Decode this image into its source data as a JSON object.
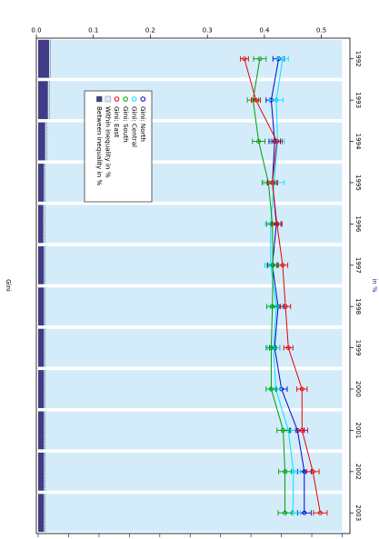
{
  "chart_data": {
    "type": "bar",
    "orientation": "rotated-90-clockwise",
    "categories": [
      "1992",
      "1993",
      "1994",
      "1995",
      "1996",
      "1997",
      "1998",
      "1999",
      "2000",
      "2001",
      "2002",
      "2003"
    ],
    "gini_axis": {
      "label": "Gini",
      "range": [
        0.0,
        0.55
      ],
      "ticks": [
        "0.0",
        "0.1",
        "0.2",
        "0.3",
        "0.4",
        "0.5"
      ]
    },
    "percent_axis": {
      "label": "in %",
      "range": [
        0,
        100
      ],
      "ticks": [
        "0",
        "10",
        "20",
        "30",
        "40",
        "50",
        "60",
        "70",
        "80",
        "90",
        "100"
      ]
    },
    "bars": [
      {
        "name": "Within inequality in %",
        "values": [
          96.4,
          96.8,
          97.7,
          98.1,
          98.3,
          98.1,
          98.1,
          98.1,
          98.1,
          98.1,
          98.1,
          98.1
        ],
        "color": "#d4ecfa"
      },
      {
        "name": "Between inequality in %",
        "values": [
          3.6,
          3.2,
          2.3,
          1.9,
          1.7,
          1.9,
          1.9,
          1.9,
          1.9,
          1.9,
          1.9,
          1.9
        ],
        "color": "#423b87"
      }
    ],
    "series": [
      {
        "name": "Gini: North",
        "color": "#0000cc",
        "values": [
          0.425,
          0.412,
          0.418,
          0.414,
          0.421,
          0.414,
          0.424,
          0.418,
          0.43,
          0.458,
          0.47,
          0.47
        ],
        "errors": [
          0.01,
          0.009,
          0.01,
          0.009,
          0.008,
          0.008,
          0.01,
          0.009,
          0.01,
          0.012,
          0.012,
          0.012
        ]
      },
      {
        "name": "Gini: Central",
        "color": "#00e0ff",
        "values": [
          0.432,
          0.421,
          0.423,
          0.417,
          0.411,
          0.411,
          0.421,
          0.416,
          0.42,
          0.442,
          0.451,
          0.45
        ],
        "errors": [
          0.01,
          0.012,
          0.012,
          0.018,
          0.009,
          0.01,
          0.011,
          0.011,
          0.01,
          0.012,
          0.012,
          0.013
        ]
      },
      {
        "name": "Gini: South",
        "color": "#009f00",
        "values": [
          0.392,
          0.38,
          0.39,
          0.407,
          0.414,
          0.415,
          0.414,
          0.412,
          0.412,
          0.433,
          0.436,
          0.436
        ],
        "errors": [
          0.011,
          0.01,
          0.011,
          0.011,
          0.01,
          0.01,
          0.01,
          0.009,
          0.009,
          0.011,
          0.011,
          0.012
        ]
      },
      {
        "name": "Gini: East",
        "color": "#e80000",
        "values": [
          0.365,
          0.385,
          0.422,
          0.414,
          0.422,
          0.432,
          0.437,
          0.442,
          0.466,
          0.466,
          0.485,
          0.498
        ],
        "errors": [
          0.007,
          0.008,
          0.009,
          0.008,
          0.009,
          0.009,
          0.009,
          0.008,
          0.009,
          0.01,
          0.011,
          0.012
        ]
      }
    ],
    "legend": [
      {
        "label": "Gini: North",
        "marker": "circle",
        "color": "#0000cc"
      },
      {
        "label": "Gini: Central",
        "marker": "circle",
        "color": "#00e0ff"
      },
      {
        "label": "Gini: South",
        "marker": "circle",
        "color": "#009f00"
      },
      {
        "label": "Gini: East",
        "marker": "circle",
        "color": "#e80000"
      },
      {
        "label": "Within inequality in %",
        "marker": "square",
        "color": "#d4ecfa"
      },
      {
        "label": "Between inequality in %",
        "marker": "square",
        "color": "#423b87"
      }
    ],
    "legend_position": "upper-right",
    "grid": false
  }
}
